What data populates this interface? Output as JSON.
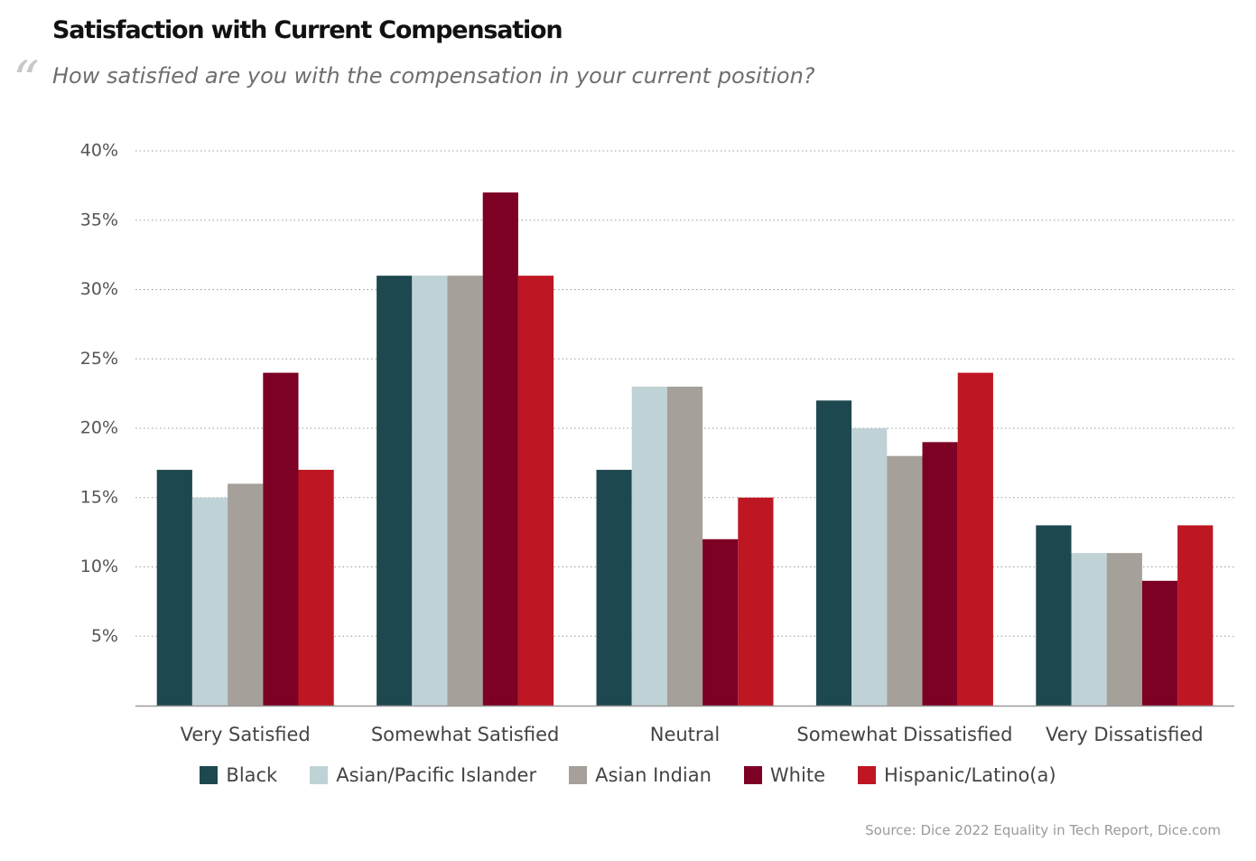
{
  "chart_data": {
    "type": "bar",
    "title": "Satisfaction with Current Compensation",
    "subtitle": "How satisfied are you with the compensation in your current position?",
    "categories": [
      "Very Satisfied",
      "Somewhat Satisfied",
      "Neutral",
      "Somewhat Dissatisfied",
      "Very Dissatisfied"
    ],
    "series": [
      {
        "name": "Black",
        "color": "#1e4850",
        "values": [
          17,
          31,
          17,
          22,
          13
        ]
      },
      {
        "name": "Asian/Pacific Islander",
        "color": "#bfd2d6",
        "values": [
          15,
          31,
          23,
          20,
          11
        ]
      },
      {
        "name": "Asian Indian",
        "color": "#a5a099",
        "values": [
          16,
          31,
          23,
          18,
          11
        ]
      },
      {
        "name": "White",
        "color": "#7d0025",
        "values": [
          24,
          37,
          12,
          19,
          9
        ]
      },
      {
        "name": "Hispanic/Latino(a)",
        "color": "#be1622",
        "values": [
          17,
          31,
          15,
          24,
          13
        ]
      }
    ],
    "y_ticks": [
      "5%",
      "10%",
      "15%",
      "20%",
      "25%",
      "30%",
      "35%",
      "40%"
    ],
    "y_tick_values": [
      5,
      10,
      15,
      20,
      25,
      30,
      35,
      40
    ],
    "ylim": [
      0,
      40
    ],
    "grid": true,
    "legend_position": "bottom",
    "source": "Source: Dice 2022 Equality in Tech Report, Dice.com"
  },
  "decor": {
    "quote_glyph": "“"
  }
}
